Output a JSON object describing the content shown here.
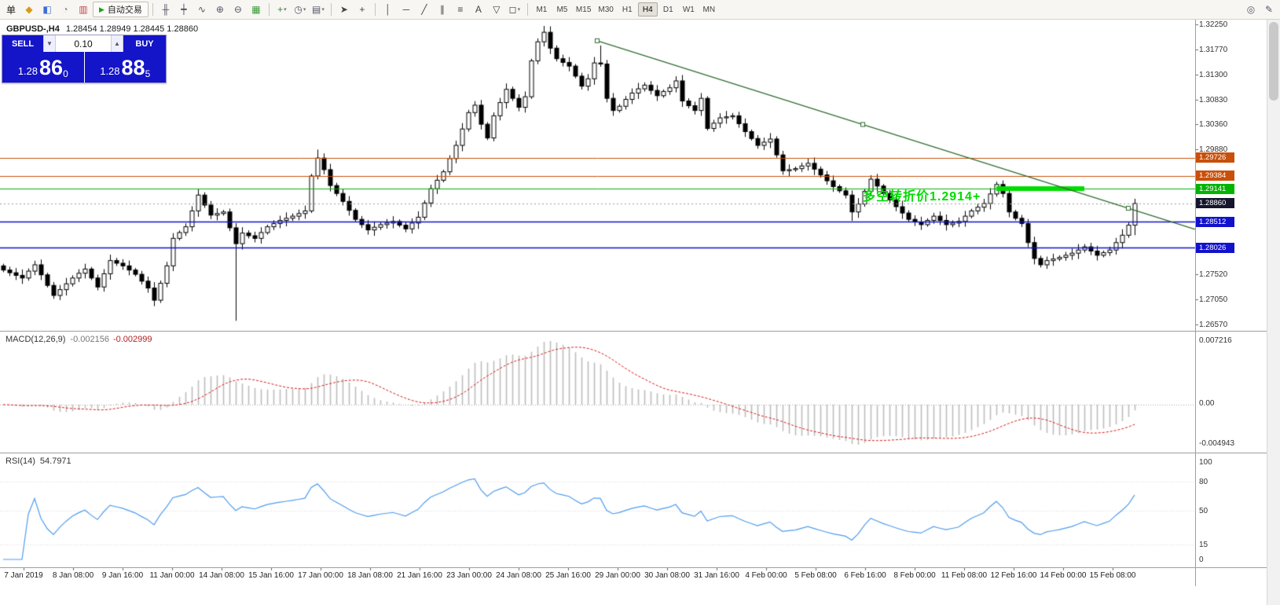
{
  "toolbar": {
    "groups": [
      {
        "name": "terminal-icons",
        "items": [
          {
            "name": "new-order-button",
            "glyph": "单",
            "color": "#222222"
          },
          {
            "name": "charts-icon",
            "glyph": "◆",
            "color": "#d99a16"
          },
          {
            "name": "profiles-icon",
            "glyph": "◧",
            "color": "#3a6ed8"
          },
          {
            "name": "history-center-icon",
            "glyph": "◔",
            "color": "#8a8a8a"
          },
          {
            "name": "navigator-icon",
            "glyph": "▥",
            "color": "#c04545"
          }
        ]
      },
      {
        "name": "chart-controls",
        "items": [
          {
            "name": "bar-chart-icon",
            "glyph": "╫",
            "color": "#556"
          },
          {
            "name": "candlestick-chart-icon",
            "glyph": "┿",
            "color": "#556"
          },
          {
            "name": "line-chart-icon",
            "glyph": "∿",
            "color": "#556"
          },
          {
            "name": "zoom-in-icon",
            "glyph": "⊕",
            "color": "#556"
          },
          {
            "name": "zoom-out-icon",
            "glyph": "⊖",
            "color": "#556"
          },
          {
            "name": "tile-windows-icon",
            "glyph": "▦",
            "color": "#3d9b3d"
          }
        ]
      },
      {
        "name": "chart-tools",
        "items": [
          {
            "name": "indicators-button",
            "glyph": "+",
            "color": "#2e8b2e",
            "dropdown": true
          },
          {
            "name": "periods-button",
            "glyph": "◷",
            "color": "#556",
            "dropdown": true
          },
          {
            "name": "templates-button",
            "glyph": "▤",
            "color": "#556",
            "dropdown": true
          }
        ]
      },
      {
        "name": "cursor-tools",
        "items": [
          {
            "name": "cursor-icon",
            "glyph": "➤",
            "color": "#444"
          },
          {
            "name": "crosshair-icon",
            "glyph": "+",
            "color": "#444"
          }
        ]
      },
      {
        "name": "line-tools",
        "items": [
          {
            "name": "vertical-line-icon",
            "glyph": "│",
            "color": "#444"
          },
          {
            "name": "horizontal-line-icon",
            "glyph": "─",
            "color": "#444"
          },
          {
            "name": "trendline-icon",
            "glyph": "╱",
            "color": "#444"
          },
          {
            "name": "channel-icon",
            "glyph": "∥",
            "color": "#444"
          },
          {
            "name": "fibonacci-icon",
            "glyph": "≡",
            "color": "#444"
          },
          {
            "name": "text-icon",
            "glyph": "A",
            "color": "#444"
          },
          {
            "name": "arrow-icon",
            "glyph": "▽",
            "color": "#444"
          },
          {
            "name": "shapes-button",
            "glyph": "◻",
            "color": "#444",
            "dropdown": true
          }
        ]
      }
    ],
    "autotrading": {
      "label": "自动交易",
      "play_glyph": "▶",
      "play_color": "#1da11d"
    },
    "timeframes": [
      "M1",
      "M5",
      "M15",
      "M30",
      "H1",
      "H4",
      "D1",
      "W1",
      "MN"
    ],
    "active_timeframe": "H4",
    "right_items": [
      {
        "name": "search-icon",
        "glyph": "◎",
        "color": "#556"
      },
      {
        "name": "properties-icon",
        "glyph": "✎",
        "color": "#556"
      }
    ]
  },
  "symbol_line": {
    "symbol": "GBPUSD-,H4",
    "ohlc": "1.28454 1.28949 1.28445 1.28860"
  },
  "trade_panel": {
    "sell_label": "SELL",
    "buy_label": "BUY",
    "volume": "0.10",
    "sell_price_small": "1.28",
    "sell_price_big": "86",
    "sell_price_sup": "0",
    "buy_price_small": "1.28",
    "buy_price_big": "88",
    "buy_price_sup": "5",
    "spin_down_glyph": "▼",
    "spin_up_glyph": "▲"
  },
  "annotation": {
    "text": "多空转折价1.2914+",
    "color": "#00dc00"
  },
  "macd_panel": {
    "label": "MACD(12,26,9)",
    "value_main": "-0.002156",
    "value_signal": "-0.002999",
    "axis_labels": [
      "0.007216",
      "0.00",
      "-0.004943"
    ]
  },
  "rsi_panel": {
    "label": "RSI(14)",
    "value": "54.7971",
    "axis_labels": [
      "100",
      "80",
      "50",
      "15",
      "0"
    ]
  },
  "price_axis": {
    "gray_labels": [
      "1.32250",
      "1.31770",
      "1.31300",
      "1.30830",
      "1.30360",
      "1.29880",
      "1.27520",
      "1.27050",
      "1.26570"
    ],
    "tags": [
      {
        "text": "1.29726",
        "price": 1.29726,
        "bg": "#c8500a"
      },
      {
        "text": "1.29384",
        "price": 1.29384,
        "bg": "#c8500a"
      },
      {
        "text": "1.29141",
        "price": 1.29141,
        "bg": "#00b400"
      },
      {
        "text": "1.28860",
        "price": 1.2886,
        "bg": "#15152e"
      },
      {
        "text": "1.28512",
        "price": 1.28512,
        "bg": "#1212cc"
      },
      {
        "text": "1.28026",
        "price": 1.28026,
        "bg": "#1212cc"
      }
    ]
  },
  "time_axis": {
    "labels": [
      "7 Jan 2019",
      "8 Jan 08:00",
      "9 Jan 16:00",
      "11 Jan 00:00",
      "14 Jan 08:00",
      "15 Jan 16:00",
      "17 Jan 00:00",
      "18 Jan 08:00",
      "21 Jan 16:00",
      "23 Jan 00:00",
      "24 Jan 08:00",
      "25 Jan 16:00",
      "29 Jan 00:00",
      "30 Jan 08:00",
      "31 Jan 16:00",
      "4 Feb 00:00",
      "5 Feb 08:00",
      "6 Feb 16:00",
      "8 Feb 00:00",
      "11 Feb 08:00",
      "12 Feb 16:00",
      "14 Feb 00:00",
      "15 Feb 08:00"
    ]
  },
  "chart_data": {
    "type": "candlestick",
    "symbol": "GBPUSD",
    "timeframe": "H4",
    "current_bar": {
      "open": 1.28454,
      "high": 1.28949,
      "low": 1.28445,
      "close": 1.2886
    },
    "price_range": {
      "top": 1.3225,
      "bottom": 1.2657
    },
    "first_open": 1.2768,
    "closes": [
      1.276,
      1.2755,
      1.275,
      1.2745,
      1.2758,
      1.277,
      1.2751,
      1.2731,
      1.2712,
      1.2723,
      1.2734,
      1.2745,
      1.2754,
      1.2762,
      1.2745,
      1.2728,
      1.2753,
      1.2778,
      1.2773,
      1.2768,
      1.276,
      1.2752,
      1.2739,
      1.2726,
      1.2703,
      1.2735,
      1.2768,
      1.282,
      1.2831,
      1.2842,
      1.2872,
      1.2902,
      1.2883,
      1.2864,
      1.2867,
      1.287,
      1.284,
      1.281,
      1.283,
      1.2825,
      1.282,
      1.2831,
      1.2842,
      1.2848,
      1.2854,
      1.2858,
      1.2862,
      1.2867,
      1.2872,
      1.2938,
      1.2972,
      1.295,
      1.292,
      1.2905,
      1.289,
      1.2873,
      1.2856,
      1.2846,
      1.2836,
      1.2841,
      1.2846,
      1.2849,
      1.2852,
      1.2845,
      1.2838,
      1.2849,
      1.286,
      1.2887,
      1.2914,
      1.293,
      1.2946,
      1.2971,
      1.2996,
      1.3027,
      1.3058,
      1.3072,
      1.3036,
      1.301,
      1.3052,
      1.3077,
      1.3102,
      1.3085,
      1.3068,
      1.3088,
      1.3156,
      1.3192,
      1.321,
      1.318,
      1.316,
      1.3153,
      1.3146,
      1.3127,
      1.3108,
      1.3122,
      1.3152,
      1.315,
      1.3085,
      1.3062,
      1.307,
      1.3083,
      1.3095,
      1.3103,
      1.311,
      1.31,
      1.309,
      1.3098,
      1.3105,
      1.3118,
      1.308,
      1.3071,
      1.3062,
      1.3085,
      1.3028,
      1.3038,
      1.3048,
      1.305,
      1.3052,
      1.3037,
      1.3022,
      1.3009,
      1.2996,
      1.3002,
      1.3008,
      1.2978,
      1.2948,
      1.295,
      1.2952,
      1.2957,
      1.2962,
      1.2951,
      1.294,
      1.2929,
      1.2918,
      1.291,
      1.2902,
      1.287,
      1.2885,
      1.2909,
      1.2932,
      1.2919,
      1.2905,
      1.2893,
      1.288,
      1.2868,
      1.2856,
      1.2851,
      1.2846,
      1.2854,
      1.2862,
      1.2854,
      1.2846,
      1.2849,
      1.2852,
      1.2862,
      1.2872,
      1.2879,
      1.2886,
      1.2904,
      1.2922,
      1.2905,
      1.287,
      1.2858,
      1.2848,
      1.2812,
      1.2782,
      1.277,
      1.2778,
      1.2781,
      1.2784,
      1.2788,
      1.2792,
      1.2798,
      1.2804,
      1.2796,
      1.2788,
      1.2793,
      1.2798,
      1.2812,
      1.2826,
      1.2845,
      1.2886
    ],
    "special_candles": {
      "24": {
        "l": 1.27
      },
      "37": {
        "l": 1.2664
      },
      "50": {
        "h": 1.2988
      },
      "86": {
        "h": 1.3222
      },
      "95": {
        "h": 1.3185
      },
      "135": {
        "l": 1.2853
      },
      "180": {
        "h": 1.28949,
        "l": 1.2826
      }
    },
    "levels": {
      "resistance": [
        1.29726,
        1.29384
      ],
      "pivot": 1.29141,
      "current": 1.2886,
      "support": [
        1.28512,
        1.28026
      ]
    },
    "level_colors": {
      "resistance": "#c8500a",
      "pivot": "#00b400",
      "current": "#9a9a9a",
      "support": "#1212cc"
    },
    "pivot_highlight": {
      "price": 1.29141,
      "from_index": 158,
      "to_index": 172,
      "color": "#00dc00"
    },
    "trendline": {
      "start_index": 94.5,
      "start_price": 1.3194,
      "end_index": 179,
      "end_price": 1.2877,
      "color": "#2e6b2e"
    },
    "macd": {
      "params": [
        12,
        26,
        9
      ],
      "current_main": -0.002156,
      "current_signal": -0.002999,
      "range_max": 0.007216,
      "range_min": -0.004943,
      "histogram_color": "#bdbdbd",
      "signal_color": "#d61a1a"
    },
    "rsi": {
      "period": 14,
      "current": 54.7971,
      "levels": [
        80,
        50,
        15
      ],
      "line_color": "#4f9ced"
    }
  }
}
